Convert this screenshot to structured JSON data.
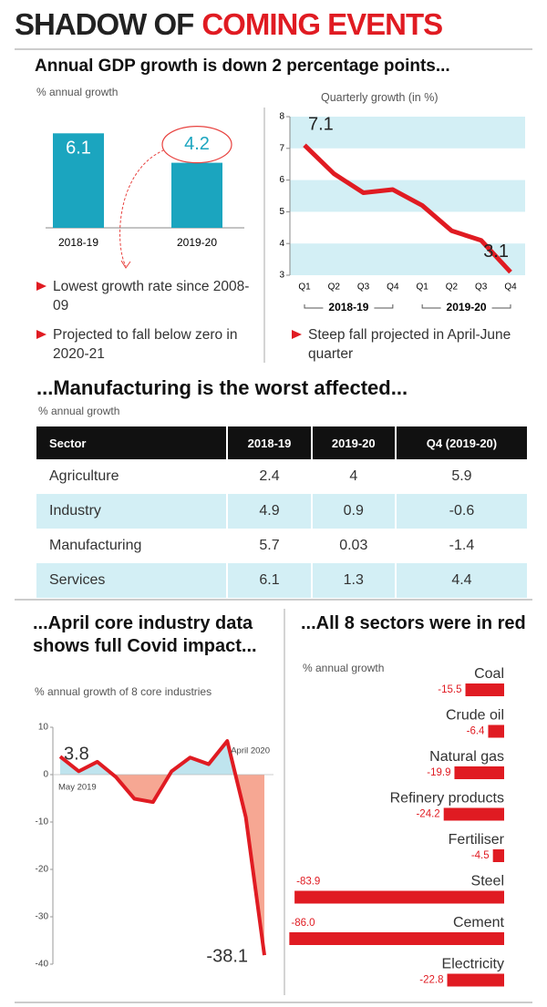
{
  "title": "SHADOW OF",
  "title_highlight": "COMING EVENTS",
  "chart_data": [
    {
      "type": "bar",
      "title": "Annual GDP growth is down 2 percentage points...",
      "subtitle": "% annual growth",
      "categories": [
        "2018-19",
        "2019-20"
      ],
      "values": [
        6.1,
        4.2
      ],
      "color": "#1ba5bf",
      "highlight_color": "#e8423f",
      "annotations": [
        "Lowest growth rate since 2008-09",
        "Projected to fall below zero in 2020-21"
      ]
    },
    {
      "type": "line",
      "subtitle": "Quarterly growth (in %)",
      "categories": [
        "Q1",
        "Q2",
        "Q3",
        "Q4",
        "Q1",
        "Q2",
        "Q3",
        "Q4"
      ],
      "groups": [
        "2018-19",
        "2019-20"
      ],
      "values": [
        7.1,
        6.2,
        5.6,
        5.7,
        5.2,
        4.4,
        4.1,
        3.1
      ],
      "value_labels": [
        "7.1",
        null,
        null,
        null,
        null,
        null,
        null,
        "3.1"
      ],
      "color": "#e01b22",
      "band_color": "#d3eff5",
      "ylim": [
        3,
        8
      ],
      "yticks": [
        3,
        4,
        5,
        6,
        7,
        8
      ],
      "annotations": [
        "Steep fall projected in April-June quarter"
      ]
    },
    {
      "type": "area",
      "title": "...April core industry data shows full Covid impact...",
      "subtitle": "% annual growth of 8 core industries",
      "categories": [
        "May 2019",
        null,
        null,
        null,
        null,
        null,
        null,
        null,
        null,
        null,
        null,
        "April 2020"
      ],
      "values": [
        3.8,
        0.7,
        2.7,
        -0.5,
        -5.1,
        -5.8,
        0.7,
        3.6,
        2.2,
        7.1,
        -9.0,
        -38.1
      ],
      "value_labels": [
        "3.8",
        null,
        null,
        null,
        null,
        null,
        null,
        null,
        null,
        null,
        null,
        "-38.1"
      ],
      "color": "#e01b22",
      "positive_color": "#bfe4ee",
      "negative_color": "#f6a793",
      "ylim": [
        -40,
        10
      ],
      "yticks": [
        -40,
        -30,
        -20,
        -10,
        0,
        10
      ]
    },
    {
      "type": "hbar",
      "title": "...All 8 sectors were in red",
      "subtitle": "% annual growth",
      "categories": [
        "Coal",
        "Crude oil",
        "Natural gas",
        "Refinery products",
        "Fertiliser",
        "Steel",
        "Cement",
        "Electricity"
      ],
      "values": [
        -15.5,
        -6.4,
        -19.9,
        -24.2,
        -4.5,
        -83.9,
        -86.0,
        -22.8
      ],
      "value_labels": [
        "-15.5",
        "-6.4",
        "-19.9",
        "-24.2",
        "-4.5",
        "-83.9",
        "-86.0",
        "-22.8"
      ],
      "color": "#e01b22"
    }
  ],
  "table": {
    "title": "...Manufacturing is the worst affected...",
    "subtitle": "% annual growth",
    "columns": [
      "Sector",
      "2018-19",
      "2019-20",
      "Q4 (2019-20)"
    ],
    "rows": [
      [
        "Agriculture",
        2.4,
        4,
        5.9
      ],
      [
        "Industry",
        4.9,
        0.9,
        -0.6
      ],
      [
        "Manufacturing",
        5.7,
        0.03,
        -1.4
      ],
      [
        "Services",
        6.1,
        1.3,
        4.4
      ]
    ],
    "stripe_color": "#d3eff5"
  }
}
